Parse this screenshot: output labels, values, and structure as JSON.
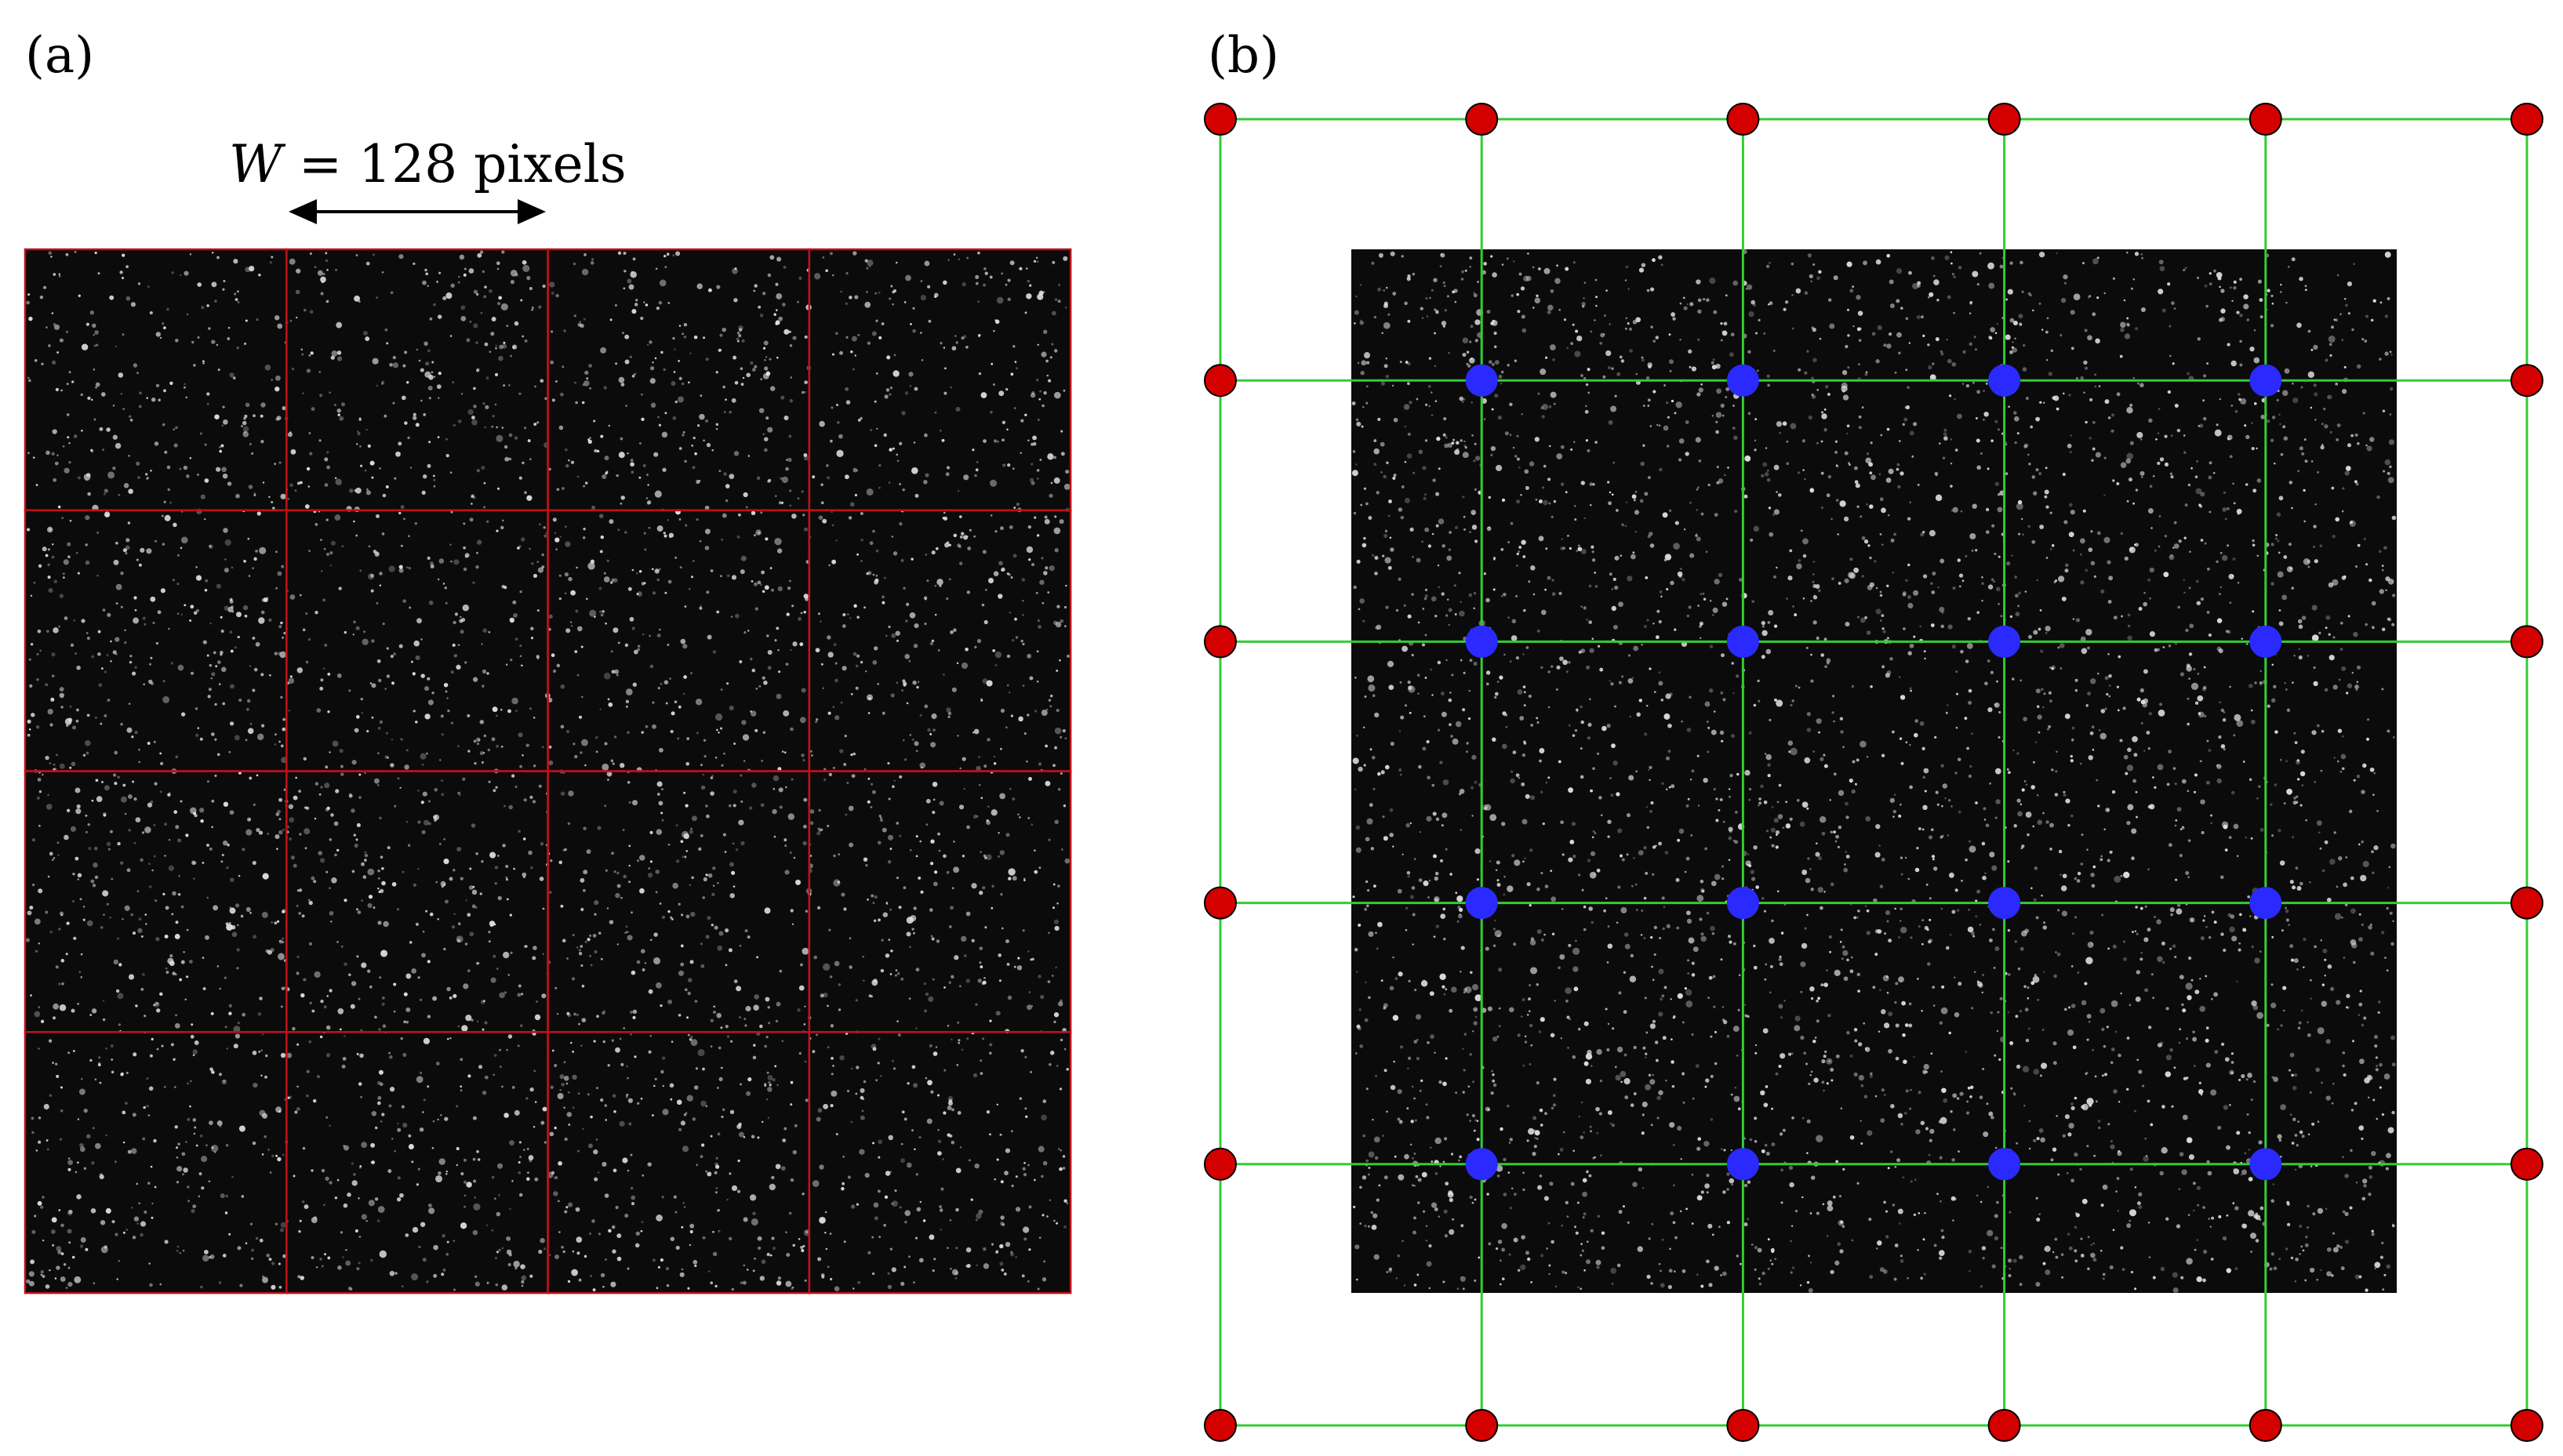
{
  "panels": {
    "a": {
      "label": "(a)",
      "width_annotation": {
        "symbol": "W",
        "equals": " = ",
        "value": "128 pixels"
      },
      "grid": {
        "rows": 4,
        "cols": 4
      }
    },
    "b": {
      "label": "(b)",
      "node_grid": {
        "count_per_side": 6,
        "outer_node": "red boundary node",
        "inner_node": "blue interior node"
      }
    }
  },
  "colors": {
    "background": "#ffffff",
    "particle_image": "#0b0b0b",
    "particle": "#e6e6e6",
    "window_grid": "#c0101a",
    "mesh_line": "#33cc33",
    "outer_node": "#d40000",
    "inner_node": "#2a2aff",
    "node_stroke": "#000000"
  }
}
